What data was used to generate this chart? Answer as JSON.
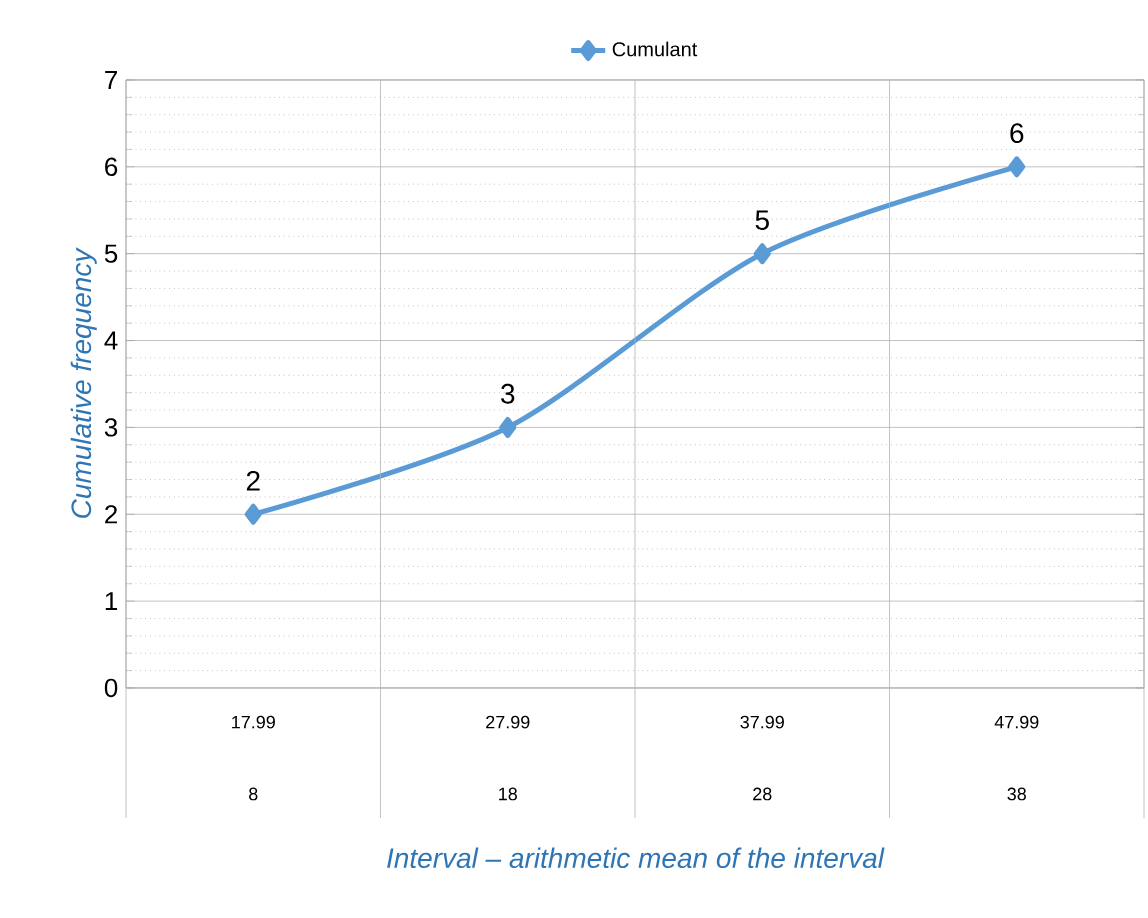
{
  "chart_data": {
    "type": "line",
    "xlabel": "Interval – arithmetic mean of the interval",
    "ylabel": "Cumulative frequency",
    "categories": [
      "17.99",
      "27.99",
      "37.99",
      "47.99"
    ],
    "annotations": [
      "8",
      "18",
      "28",
      "38"
    ],
    "series": [
      {
        "name": "Cumulant",
        "color": "#5b9bd5",
        "values": [
          2,
          3,
          5,
          6
        ]
      }
    ],
    "ylim": [
      0,
      7
    ],
    "yticks": [
      0,
      1,
      2,
      3,
      4,
      5,
      6,
      7
    ],
    "grid": true,
    "legend": "top",
    "marker": "diamond",
    "line_style": "solid",
    "data_labels": true
  }
}
